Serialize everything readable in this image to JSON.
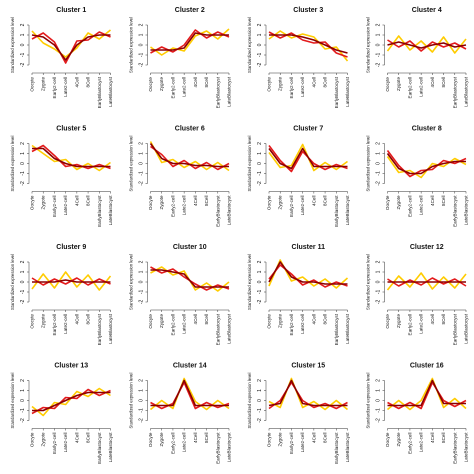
{
  "chart_data": [
    {
      "type": "line",
      "title": "Cluster 1",
      "ylabel": "Standardized expression level",
      "categories": [
        "Oocyte",
        "Zygote",
        "Early2-cell",
        "Late2-cell",
        "4Cell",
        "8Cell",
        "EarlyBlastocyst",
        "LateBlastocyst"
      ],
      "ylim": [
        -2.5,
        2.5
      ],
      "yticks": [
        -2,
        -1,
        0,
        1,
        2
      ],
      "series": [
        {
          "color": "#8b0000",
          "values": [
            1,
            0.8,
            0,
            -1.5,
            0,
            0.8,
            1,
            1
          ]
        },
        {
          "color": "#e31a1c",
          "values": [
            0.6,
            1.2,
            0.3,
            -1.8,
            0.4,
            0.5,
            1.3,
            0.8
          ]
        },
        {
          "color": "#ffcc00",
          "values": [
            1.4,
            0.2,
            -0.4,
            -1.2,
            -0.3,
            1.2,
            0.6,
            1.5
          ]
        }
      ]
    },
    {
      "type": "line",
      "title": "Cluster 2",
      "ylabel": "Standardized expression level",
      "categories": [
        "Oocyte",
        "Zygote",
        "Early2-cell",
        "Late2-cell",
        "4Cell",
        "8Cell",
        "EarlyBlastocyst",
        "LateBlastocyst"
      ],
      "ylim": [
        -2.5,
        2.5
      ],
      "yticks": [
        -2,
        -1,
        0,
        1,
        2
      ],
      "series": [
        {
          "color": "#8b0000",
          "values": [
            -0.5,
            -0.5,
            -0.5,
            -0.3,
            1.2,
            1,
            1,
            1
          ]
        },
        {
          "color": "#e31a1c",
          "values": [
            -0.8,
            -0.2,
            -0.7,
            0,
            1.5,
            0.7,
            1.3,
            0.8
          ]
        },
        {
          "color": "#ffcc00",
          "values": [
            -0.2,
            -1,
            -0.3,
            -0.6,
            0.9,
            1.4,
            0.6,
            1.6
          ]
        }
      ]
    },
    {
      "type": "line",
      "title": "Cluster 3",
      "ylabel": "Standardized expression level",
      "categories": [
        "Oocyte",
        "Zygote",
        "Early2-cell",
        "Late2-cell",
        "4Cell",
        "8Cell",
        "EarlyBlastocyst",
        "LateBlastocyst"
      ],
      "ylim": [
        -2.5,
        2.5
      ],
      "yticks": [
        -2,
        -1,
        0,
        1,
        2
      ],
      "series": [
        {
          "color": "#8b0000",
          "values": [
            1,
            1,
            1,
            0.8,
            0.5,
            0,
            -0.5,
            -0.8
          ]
        },
        {
          "color": "#e31a1c",
          "values": [
            1.3,
            0.7,
            1.2,
            0.5,
            0.2,
            0.3,
            -0.8,
            -1.2
          ]
        },
        {
          "color": "#ffcc00",
          "values": [
            0.6,
            1.4,
            0.7,
            1.1,
            0.8,
            -0.4,
            -0.2,
            -1.6
          ]
        }
      ]
    },
    {
      "type": "line",
      "title": "Cluster 4",
      "ylabel": "Standardized expression level",
      "categories": [
        "Oocyte",
        "Zygote",
        "Early2-cell",
        "Late2-cell",
        "4Cell",
        "8Cell",
        "EarlyBlastocyst",
        "LateBlastocyst"
      ],
      "ylim": [
        -2.5,
        2.5
      ],
      "yticks": [
        -2,
        -1,
        0,
        1,
        2
      ],
      "series": [
        {
          "color": "#8b0000",
          "values": [
            0,
            0.3,
            0,
            -0.3,
            0,
            0.2,
            -0.2,
            0
          ]
        },
        {
          "color": "#e31a1c",
          "values": [
            0.5,
            -0.2,
            0.4,
            -0.6,
            0.3,
            -0.2,
            0.2,
            -0.4
          ]
        },
        {
          "color": "#ffcc00",
          "values": [
            -0.6,
            0.9,
            -0.5,
            0.4,
            -0.7,
            0.8,
            -0.8,
            0.6
          ]
        }
      ]
    },
    {
      "type": "line",
      "title": "Cluster 5",
      "ylabel": "Standardized expression level",
      "categories": [
        "Oocyte",
        "Zygote",
        "Early2-cell",
        "Late2-cell",
        "4Cell",
        "8Cell",
        "EarlyBlastocyst",
        "LateBlastocyst"
      ],
      "ylim": [
        -2.5,
        2.5
      ],
      "yticks": [
        -2,
        -1,
        0,
        1,
        2
      ],
      "series": [
        {
          "color": "#8b0000",
          "values": [
            1.5,
            1.5,
            0.5,
            0,
            -0.3,
            -0.3,
            -0.3,
            -0.3
          ]
        },
        {
          "color": "#e31a1c",
          "values": [
            1.2,
            1.8,
            0.8,
            -0.3,
            -0.1,
            -0.5,
            -0.1,
            -0.5
          ]
        },
        {
          "color": "#ffcc00",
          "values": [
            1.8,
            1,
            0.2,
            0.4,
            -0.6,
            0,
            -0.7,
            0.1
          ]
        }
      ]
    },
    {
      "type": "line",
      "title": "Cluster 6",
      "ylabel": "Standardized expression level",
      "categories": [
        "Oocyte",
        "Zygote",
        "Early2-cell",
        "Late2-cell",
        "4Cell",
        "8Cell",
        "EarlyBlastocyst",
        "LateBlastocyst"
      ],
      "ylim": [
        -2.5,
        2.5
      ],
      "yticks": [
        -2,
        -1,
        0,
        1,
        2
      ],
      "series": [
        {
          "color": "#8b0000",
          "values": [
            2,
            0.5,
            0,
            0,
            -0.2,
            -0.2,
            -0.3,
            -0.3
          ]
        },
        {
          "color": "#e31a1c",
          "values": [
            1.7,
            0.9,
            -0.3,
            0.3,
            -0.5,
            0.1,
            -0.6,
            0
          ]
        },
        {
          "color": "#ffcc00",
          "values": [
            2.2,
            0.1,
            0.4,
            -0.4,
            0.2,
            -0.6,
            0.1,
            -0.7
          ]
        }
      ]
    },
    {
      "type": "line",
      "title": "Cluster 7",
      "ylabel": "Standardized expression level",
      "categories": [
        "Oocyte",
        "Zygote",
        "Early2-cell",
        "Late2-cell",
        "4Cell",
        "8Cell",
        "EarlyBlastocyst",
        "LateBlastocyst"
      ],
      "ylim": [
        -2.5,
        2.5
      ],
      "yticks": [
        -2,
        -1,
        0,
        1,
        2
      ],
      "series": [
        {
          "color": "#8b0000",
          "values": [
            1.5,
            0,
            -0.5,
            1.5,
            -0.3,
            -0.3,
            -0.3,
            -0.3
          ]
        },
        {
          "color": "#e31a1c",
          "values": [
            1.8,
            0.3,
            -0.8,
            1.2,
            0,
            -0.6,
            -0.1,
            -0.5
          ]
        },
        {
          "color": "#ffcc00",
          "values": [
            1.1,
            -0.4,
            -0.2,
            1.9,
            -0.7,
            0.1,
            -0.6,
            0.2
          ]
        }
      ]
    },
    {
      "type": "line",
      "title": "Cluster 8",
      "ylabel": "Standardized expression level",
      "categories": [
        "Oocyte",
        "Zygote",
        "Early2-cell",
        "Late2-cell",
        "4Cell",
        "8Cell",
        "EarlyBlastocyst",
        "LateBlastocyst"
      ],
      "ylim": [
        -2.5,
        2.5
      ],
      "yticks": [
        -2,
        -1,
        0,
        1,
        2
      ],
      "series": [
        {
          "color": "#8b0000",
          "values": [
            1,
            -0.5,
            -1,
            -1,
            -0.3,
            0,
            0.2,
            0.2
          ]
        },
        {
          "color": "#e31a1c",
          "values": [
            1.3,
            -0.2,
            -1.3,
            -0.7,
            -0.6,
            0.3,
            0,
            0.5
          ]
        },
        {
          "color": "#ffcc00",
          "values": [
            0.7,
            -0.9,
            -0.7,
            -1.4,
            0,
            -0.3,
            0.5,
            -0.1
          ]
        }
      ]
    },
    {
      "type": "line",
      "title": "Cluster 9",
      "ylabel": "Standardized expression level",
      "categories": [
        "Oocyte",
        "Zygote",
        "Early2-cell",
        "Late2-cell",
        "4Cell",
        "8Cell",
        "EarlyBlastocyst",
        "LateBlastocyst"
      ],
      "ylim": [
        -2.5,
        2.5
      ],
      "yticks": [
        -2,
        -1,
        0,
        1,
        2
      ],
      "series": [
        {
          "color": "#8b0000",
          "values": [
            0,
            0,
            0,
            0.2,
            0,
            0,
            0,
            0
          ]
        },
        {
          "color": "#e31a1c",
          "values": [
            0.4,
            -0.3,
            0.3,
            -0.2,
            0.4,
            -0.3,
            0.3,
            -0.2
          ]
        },
        {
          "color": "#ffcc00",
          "values": [
            -0.7,
            0.8,
            -0.6,
            1,
            -0.5,
            0.7,
            -0.8,
            0.6
          ]
        }
      ]
    },
    {
      "type": "line",
      "title": "Cluster 10",
      "ylabel": "Standardized expression level",
      "categories": [
        "Oocyte",
        "Zygote",
        "Early2-cell",
        "Late2-cell",
        "4Cell",
        "8Cell",
        "EarlyBlastocyst",
        "LateBlastocyst"
      ],
      "ylim": [
        -2.5,
        2.5
      ],
      "yticks": [
        -2,
        -1,
        0,
        1,
        2
      ],
      "series": [
        {
          "color": "#8b0000",
          "values": [
            1.2,
            1.2,
            1,
            0.8,
            -0.5,
            -0.5,
            -0.5,
            -0.5
          ]
        },
        {
          "color": "#e31a1c",
          "values": [
            1.5,
            0.9,
            1.3,
            0.5,
            -0.2,
            -0.8,
            -0.3,
            -0.7
          ]
        },
        {
          "color": "#ffcc00",
          "values": [
            0.9,
            1.5,
            0.7,
            1.1,
            -0.8,
            -0.1,
            -0.9,
            0
          ]
        }
      ]
    },
    {
      "type": "line",
      "title": "Cluster 11",
      "ylabel": "Standardized expression level",
      "categories": [
        "Oocyte",
        "Zygote",
        "Early2-cell",
        "Late2-cell",
        "4Cell",
        "8Cell",
        "EarlyBlastocyst",
        "LateBlastocyst"
      ],
      "ylim": [
        -2.5,
        2.5
      ],
      "yticks": [
        -2,
        -1,
        0,
        1,
        2
      ],
      "series": [
        {
          "color": "#8b0000",
          "values": [
            0,
            2,
            0.5,
            0,
            0,
            -0.2,
            -0.2,
            -0.2
          ]
        },
        {
          "color": "#e31a1c",
          "values": [
            0.3,
            1.7,
            0.8,
            -0.3,
            0.2,
            -0.5,
            0,
            -0.4
          ]
        },
        {
          "color": "#ffcc00",
          "values": [
            -0.4,
            2.2,
            0.1,
            0.5,
            -0.4,
            0.3,
            -0.6,
            0.4
          ]
        }
      ]
    },
    {
      "type": "line",
      "title": "Cluster 12",
      "ylabel": "Standardized expression level",
      "categories": [
        "Oocyte",
        "Zygote",
        "Early2-cell",
        "Late2-cell",
        "4Cell",
        "8Cell",
        "EarlyBlastocyst",
        "LateBlastocyst"
      ],
      "ylim": [
        -2.5,
        2.5
      ],
      "yticks": [
        -2,
        -1,
        0,
        1,
        2
      ],
      "series": [
        {
          "color": "#8b0000",
          "values": [
            0,
            0,
            0,
            0,
            0,
            0,
            0,
            0
          ]
        },
        {
          "color": "#e31a1c",
          "values": [
            0.3,
            -0.4,
            0.2,
            -0.3,
            0.4,
            -0.2,
            0.3,
            -0.4
          ]
        },
        {
          "color": "#ffcc00",
          "values": [
            -0.8,
            0.6,
            -0.5,
            0.9,
            -0.7,
            0.5,
            -0.6,
            0.8
          ]
        }
      ]
    },
    {
      "type": "line",
      "title": "Cluster 13",
      "ylabel": "Standardized expression level",
      "categories": [
        "Oocyte",
        "Zygote",
        "Early2-cell",
        "Late2-cell",
        "4Cell",
        "8Cell",
        "EarlyBlastocyst",
        "LateBlastocyst"
      ],
      "ylim": [
        -2.5,
        2.5
      ],
      "yticks": [
        -2,
        -1,
        0,
        1,
        2
      ],
      "series": [
        {
          "color": "#8b0000",
          "values": [
            -1,
            -1,
            -0.5,
            0,
            0.5,
            0.8,
            0.8,
            0.8
          ]
        },
        {
          "color": "#e31a1c",
          "values": [
            -1.3,
            -0.7,
            -0.8,
            0.3,
            0.2,
            1.1,
            0.5,
            1
          ]
        },
        {
          "color": "#ffcc00",
          "values": [
            -0.6,
            -1.5,
            -0.2,
            -0.4,
            0.9,
            0.4,
            1.2,
            0.5
          ]
        }
      ]
    },
    {
      "type": "line",
      "title": "Cluster 14",
      "ylabel": "Standardized expression level",
      "categories": [
        "Oocyte",
        "Zygote",
        "Early2-cell",
        "Late2-cell",
        "4Cell",
        "8Cell",
        "EarlyBlastocyst",
        "LateBlastocyst"
      ],
      "ylim": [
        -2.5,
        2.5
      ],
      "yticks": [
        -2,
        -1,
        0,
        1,
        2
      ],
      "series": [
        {
          "color": "#8b0000",
          "values": [
            -0.5,
            -0.5,
            -0.5,
            2,
            -0.5,
            -0.5,
            -0.5,
            -0.5
          ]
        },
        {
          "color": "#e31a1c",
          "values": [
            -0.2,
            -0.8,
            -0.3,
            1.8,
            -0.8,
            -0.2,
            -0.7,
            -0.3
          ]
        },
        {
          "color": "#ffcc00",
          "values": [
            -0.9,
            0,
            -0.8,
            2.2,
            -0.1,
            -0.9,
            0,
            -0.8
          ]
        }
      ]
    },
    {
      "type": "line",
      "title": "Cluster 15",
      "ylabel": "Standardized expression level",
      "categories": [
        "Oocyte",
        "Zygote",
        "Early2-cell",
        "Late2-cell",
        "4Cell",
        "8Cell",
        "EarlyBlastocyst",
        "LateBlastocyst"
      ],
      "ylim": [
        -2.5,
        2.5
      ],
      "yticks": [
        -2,
        -1,
        0,
        1,
        2
      ],
      "series": [
        {
          "color": "#8b0000",
          "values": [
            -0.5,
            -0.3,
            2,
            -0.3,
            -0.5,
            -0.5,
            -0.5,
            -0.5
          ]
        },
        {
          "color": "#e31a1c",
          "values": [
            -0.8,
            0,
            1.8,
            0,
            -0.7,
            -0.3,
            -0.8,
            -0.2
          ]
        },
        {
          "color": "#ffcc00",
          "values": [
            -0.1,
            -0.7,
            2.2,
            -0.7,
            -0.1,
            -0.9,
            0,
            -0.9
          ]
        }
      ]
    },
    {
      "type": "line",
      "title": "Cluster 16",
      "ylabel": "Standardized expression level",
      "categories": [
        "Oocyte",
        "Zygote",
        "Early2-cell",
        "Late2-cell",
        "4Cell",
        "8Cell",
        "EarlyBlastocyst",
        "LateBlastocyst"
      ],
      "ylim": [
        -2.5,
        2.5
      ],
      "yticks": [
        -2,
        -1,
        0,
        1,
        2
      ],
      "series": [
        {
          "color": "#8b0000",
          "values": [
            -0.5,
            -0.5,
            -0.5,
            -0.5,
            2,
            -0.3,
            -0.3,
            -0.3
          ]
        },
        {
          "color": "#e31a1c",
          "values": [
            -0.2,
            -0.8,
            -0.2,
            -0.8,
            1.8,
            0,
            -0.6,
            0
          ]
        },
        {
          "color": "#ffcc00",
          "values": [
            -0.9,
            0,
            -0.9,
            0,
            2.2,
            -0.7,
            0.2,
            -0.8
          ]
        }
      ]
    }
  ]
}
